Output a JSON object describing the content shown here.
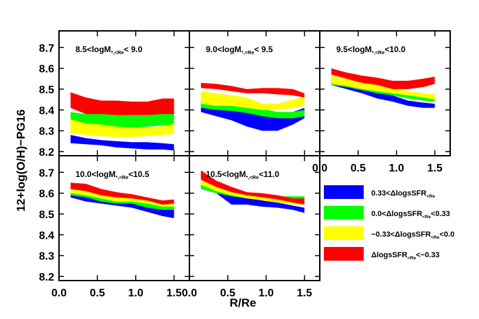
{
  "figure": {
    "ylabel": "12+log(O/H)−PG16",
    "xlabel": "R/Re",
    "xticks": [
      "0.0",
      "0.5",
      "1.0",
      "1.5"
    ],
    "yticks": [
      "8.2",
      "8.3",
      "8.4",
      "8.5",
      "8.6",
      "8.7"
    ]
  },
  "legend": {
    "items": [
      {
        "color": "#0000ff",
        "pre": "0.33<ΔlogsSFR",
        "sub": "<Re",
        "post": ""
      },
      {
        "color": "#00ff00",
        "pre": "0.0<ΔlogsSFR",
        "sub": "<Re",
        "post": "<0.33"
      },
      {
        "color": "#ffff00",
        "pre": "−0.33<ΔlogsSFR",
        "sub": "<Re",
        "post": "<0.0"
      },
      {
        "color": "#ff0000",
        "pre": "ΔlogsSFR",
        "sub": "<Re",
        "post": "<−0.33"
      }
    ]
  },
  "chart_data": [
    {
      "type": "area",
      "title": {
        "pre": "8.5<logM",
        "sub": "*,<Re",
        "post": "< 9.0"
      },
      "xlim": [
        0,
        1.7
      ],
      "ylim": [
        8.18,
        8.78
      ],
      "x": [
        0.15,
        0.35,
        0.55,
        0.75,
        0.95,
        1.15,
        1.35,
        1.5
      ],
      "series": [
        {
          "color": "#0000ff",
          "lower": [
            8.24,
            8.235,
            8.23,
            8.22,
            8.215,
            8.21,
            8.21,
            8.205
          ],
          "upper": [
            8.28,
            8.265,
            8.255,
            8.25,
            8.245,
            8.245,
            8.24,
            8.235
          ]
        },
        {
          "color": "#00ff00",
          "lower": [
            8.33,
            8.31,
            8.31,
            8.305,
            8.31,
            8.32,
            8.325,
            8.33
          ],
          "upper": [
            8.39,
            8.38,
            8.385,
            8.385,
            8.375,
            8.375,
            8.385,
            8.39
          ]
        },
        {
          "color": "#ffff00",
          "lower": [
            8.29,
            8.28,
            8.275,
            8.27,
            8.27,
            8.275,
            8.28,
            8.285
          ],
          "upper": [
            8.355,
            8.335,
            8.33,
            8.32,
            8.315,
            8.315,
            8.32,
            8.335
          ]
        },
        {
          "color": "#ff0000",
          "lower": [
            8.41,
            8.38,
            8.38,
            8.375,
            8.375,
            8.375,
            8.38,
            8.38
          ],
          "upper": [
            8.485,
            8.46,
            8.445,
            8.445,
            8.44,
            8.44,
            8.455,
            8.455
          ]
        }
      ]
    },
    {
      "type": "area",
      "title": {
        "pre": "9.0<logM",
        "sub": "*,<Re",
        "post": "< 9.5"
      },
      "xlim": [
        0,
        1.7
      ],
      "ylim": [
        8.18,
        8.78
      ],
      "x": [
        0.15,
        0.35,
        0.55,
        0.75,
        0.95,
        1.15,
        1.35,
        1.5
      ],
      "series": [
        {
          "color": "#0000ff",
          "lower": [
            8.39,
            8.37,
            8.35,
            8.32,
            8.3,
            8.3,
            8.33,
            8.36
          ],
          "upper": [
            8.44,
            8.43,
            8.41,
            8.39,
            8.38,
            8.37,
            8.39,
            8.41
          ]
        },
        {
          "color": "#00ff00",
          "lower": [
            8.41,
            8.4,
            8.395,
            8.385,
            8.37,
            8.36,
            8.36,
            8.37
          ],
          "upper": [
            8.45,
            8.44,
            8.43,
            8.42,
            8.405,
            8.39,
            8.39,
            8.4
          ]
        },
        {
          "color": "#ffff00",
          "lower": [
            8.43,
            8.42,
            8.42,
            8.41,
            8.4,
            8.4,
            8.41,
            8.42
          ],
          "upper": [
            8.49,
            8.48,
            8.47,
            8.46,
            8.43,
            8.43,
            8.45,
            8.46
          ]
        },
        {
          "color": "#ff0000",
          "lower": [
            8.505,
            8.5,
            8.49,
            8.48,
            8.48,
            8.475,
            8.47,
            8.46
          ],
          "upper": [
            8.53,
            8.525,
            8.515,
            8.5,
            8.505,
            8.505,
            8.5,
            8.48
          ]
        }
      ]
    },
    {
      "type": "area",
      "title": {
        "pre": "9.5<logM",
        "sub": "*,<Re",
        "post": "<10.0"
      },
      "xlim": [
        0,
        1.7
      ],
      "ylim": [
        8.18,
        8.78
      ],
      "x": [
        0.15,
        0.35,
        0.55,
        0.75,
        0.95,
        1.15,
        1.35,
        1.5
      ],
      "series": [
        {
          "color": "#0000ff",
          "lower": [
            8.52,
            8.5,
            8.48,
            8.455,
            8.44,
            8.42,
            8.41,
            8.41
          ],
          "upper": [
            8.56,
            8.535,
            8.52,
            8.495,
            8.47,
            8.445,
            8.435,
            8.43
          ]
        },
        {
          "color": "#00ff00",
          "lower": [
            8.52,
            8.51,
            8.495,
            8.48,
            8.47,
            8.455,
            8.445,
            8.44
          ],
          "upper": [
            8.55,
            8.54,
            8.525,
            8.51,
            8.495,
            8.475,
            8.465,
            8.46
          ]
        },
        {
          "color": "#ffff00",
          "lower": [
            8.525,
            8.515,
            8.5,
            8.49,
            8.48,
            8.47,
            8.46,
            8.45
          ],
          "upper": [
            8.565,
            8.55,
            8.54,
            8.525,
            8.505,
            8.49,
            8.48,
            8.475
          ]
        },
        {
          "color": "#ff0000",
          "lower": [
            8.57,
            8.55,
            8.53,
            8.52,
            8.5,
            8.5,
            8.51,
            8.525
          ],
          "upper": [
            8.6,
            8.58,
            8.565,
            8.555,
            8.54,
            8.54,
            8.55,
            8.56
          ]
        }
      ]
    },
    {
      "type": "area",
      "title": {
        "pre": "10.0<logM",
        "sub": "*,<Re",
        "post": "<10.5"
      },
      "xlim": [
        0,
        1.7
      ],
      "ylim": [
        8.18,
        8.78
      ],
      "x": [
        0.15,
        0.35,
        0.55,
        0.75,
        0.95,
        1.15,
        1.35,
        1.5
      ],
      "series": [
        {
          "color": "#0000ff",
          "lower": [
            8.58,
            8.56,
            8.55,
            8.54,
            8.53,
            8.51,
            8.49,
            8.48
          ],
          "upper": [
            8.6,
            8.585,
            8.57,
            8.56,
            8.55,
            8.535,
            8.53,
            8.525
          ]
        },
        {
          "color": "#00ff00",
          "lower": [
            8.59,
            8.58,
            8.56,
            8.55,
            8.55,
            8.53,
            8.52,
            8.52
          ],
          "upper": [
            8.61,
            8.6,
            8.585,
            8.57,
            8.57,
            8.555,
            8.545,
            8.55
          ]
        },
        {
          "color": "#ffff00",
          "lower": [
            8.6,
            8.59,
            8.575,
            8.56,
            8.56,
            8.55,
            8.535,
            8.535
          ],
          "upper": [
            8.625,
            8.615,
            8.6,
            8.585,
            8.58,
            8.57,
            8.56,
            8.56
          ]
        },
        {
          "color": "#ff0000",
          "lower": [
            8.62,
            8.61,
            8.59,
            8.58,
            8.575,
            8.565,
            8.545,
            8.55
          ],
          "upper": [
            8.65,
            8.645,
            8.62,
            8.605,
            8.595,
            8.58,
            8.565,
            8.57
          ]
        }
      ]
    },
    {
      "type": "area",
      "title": {
        "pre": "10.5<logM",
        "sub": "*,<Re",
        "post": "<11.0"
      },
      "xlim": [
        0,
        1.7
      ],
      "ylim": [
        8.18,
        8.78
      ],
      "x": [
        0.15,
        0.35,
        0.55,
        0.75,
        0.95,
        1.15,
        1.35,
        1.5
      ],
      "series": [
        {
          "color": "#0000ff",
          "lower": [
            8.62,
            8.6,
            8.545,
            8.545,
            8.535,
            8.53,
            8.52,
            8.505
          ],
          "upper": [
            8.7,
            8.655,
            8.615,
            8.585,
            8.565,
            8.555,
            8.54,
            8.53
          ]
        },
        {
          "color": "#00ff00",
          "lower": [
            8.62,
            8.6,
            8.585,
            8.575,
            8.57,
            8.57,
            8.57,
            8.57
          ],
          "upper": [
            8.65,
            8.63,
            8.605,
            8.59,
            8.585,
            8.585,
            8.585,
            8.585
          ]
        },
        {
          "color": "#ffff00",
          "lower": [
            8.64,
            8.61,
            8.59,
            8.575,
            8.565,
            8.555,
            8.545,
            8.545
          ],
          "upper": [
            8.685,
            8.645,
            8.62,
            8.6,
            8.59,
            8.575,
            8.565,
            8.565
          ]
        },
        {
          "color": "#ff0000",
          "lower": [
            8.665,
            8.63,
            8.605,
            8.59,
            8.58,
            8.57,
            8.555,
            8.545
          ],
          "upper": [
            8.71,
            8.66,
            8.63,
            8.605,
            8.6,
            8.59,
            8.575,
            8.575
          ]
        }
      ]
    }
  ]
}
